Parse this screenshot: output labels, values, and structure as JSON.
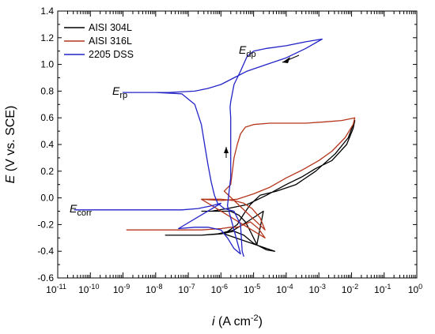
{
  "chart_data": {
    "type": "line",
    "xlabel": {
      "main": "i",
      "unit": "(A cm",
      "sup": "-2",
      "close": ")"
    },
    "ylabel": {
      "main": "E",
      "unit": "(V vs. SCE)"
    },
    "xscale": "log",
    "xlim_exp": [
      -11,
      0
    ],
    "ylim": [
      -0.6,
      1.4
    ],
    "x_tick_exponents": [
      -11,
      -10,
      -9,
      -8,
      -7,
      -6,
      -5,
      -4,
      -3,
      -2,
      -1,
      0
    ],
    "x_tick_base": "10",
    "y_ticks": [
      "-0.6",
      "-0.4",
      "-0.2",
      "0.0",
      "0.2",
      "0.4",
      "0.6",
      "0.8",
      "1.0",
      "1.2",
      "1.4"
    ],
    "legend_position": "top-left",
    "series": [
      {
        "name": "AISI 304L",
        "color": "#000000",
        "log_i_E": [
          [
            -6.6,
            -0.1
          ],
          [
            -6.0,
            -0.1
          ],
          [
            -5.7,
            -0.1
          ],
          [
            -5.45,
            -0.13
          ],
          [
            -5.25,
            -0.18
          ],
          [
            -5.1,
            -0.25
          ],
          [
            -5.0,
            -0.3
          ],
          [
            -4.9,
            -0.35
          ],
          [
            -4.7,
            -0.1
          ],
          [
            -5.2,
            -0.18
          ],
          [
            -5.6,
            -0.24
          ],
          [
            -6.1,
            -0.27
          ],
          [
            -6.6,
            -0.28
          ],
          [
            -7.2,
            -0.28
          ],
          [
            -7.7,
            -0.28
          ],
          [
            -6.6,
            -0.28
          ],
          [
            -6.0,
            -0.27
          ],
          [
            -5.6,
            -0.25
          ],
          [
            -5.3,
            -0.28
          ],
          [
            -5.0,
            -0.34
          ],
          [
            -4.6,
            -0.39
          ],
          [
            -4.35,
            -0.4
          ],
          [
            -5.9,
            -0.27
          ],
          [
            -5.5,
            -0.2
          ],
          [
            -5.3,
            -0.12
          ],
          [
            -5.1,
            -0.05
          ],
          [
            -4.8,
            0.02
          ],
          [
            -4.3,
            0.05
          ],
          [
            -3.7,
            0.1
          ],
          [
            -3.1,
            0.2
          ],
          [
            -2.5,
            0.33
          ],
          [
            -2.1,
            0.45
          ],
          [
            -1.9,
            0.58
          ],
          [
            -1.95,
            0.52
          ],
          [
            -2.15,
            0.4
          ],
          [
            -2.6,
            0.28
          ],
          [
            -3.1,
            0.22
          ],
          [
            -3.5,
            0.16
          ],
          [
            -4.0,
            0.1
          ],
          [
            -4.6,
            0.02
          ],
          [
            -5.2,
            -0.05
          ],
          [
            -5.8,
            -0.08
          ],
          [
            -6.3,
            -0.1
          ]
        ]
      },
      {
        "name": "AISI 316L",
        "color": "#b5361c",
        "log_i_E": [
          [
            -8.9,
            -0.24
          ],
          [
            -8.0,
            -0.24
          ],
          [
            -7.2,
            -0.24
          ],
          [
            -6.6,
            -0.24
          ],
          [
            -6.0,
            -0.23
          ],
          [
            -5.7,
            -0.22
          ],
          [
            -5.5,
            -0.22
          ],
          [
            -5.3,
            -0.2
          ],
          [
            -5.1,
            -0.18
          ],
          [
            -4.85,
            -0.23
          ],
          [
            -4.65,
            -0.3
          ],
          [
            -6.6,
            -0.01
          ],
          [
            -6.0,
            -0.01
          ],
          [
            -5.6,
            -0.02
          ],
          [
            -5.3,
            -0.04
          ],
          [
            -5.05,
            -0.08
          ],
          [
            -4.8,
            -0.15
          ],
          [
            -4.65,
            -0.24
          ],
          [
            -5.9,
            0.05
          ],
          [
            -5.7,
            0.1
          ],
          [
            -5.65,
            0.2
          ],
          [
            -5.6,
            0.3
          ],
          [
            -5.5,
            0.4
          ],
          [
            -5.4,
            0.48
          ],
          [
            -5.25,
            0.53
          ],
          [
            -5.0,
            0.55
          ],
          [
            -4.5,
            0.56
          ],
          [
            -4.0,
            0.56
          ],
          [
            -3.4,
            0.56
          ],
          [
            -2.8,
            0.57
          ],
          [
            -2.3,
            0.58
          ],
          [
            -1.9,
            0.6
          ],
          [
            -1.95,
            0.55
          ],
          [
            -2.2,
            0.45
          ],
          [
            -2.6,
            0.35
          ],
          [
            -3.0,
            0.28
          ],
          [
            -3.5,
            0.21
          ],
          [
            -4.0,
            0.15
          ],
          [
            -4.5,
            0.08
          ],
          [
            -5.0,
            0.03
          ],
          [
            -5.5,
            -0.01
          ],
          [
            -6.0,
            -0.02
          ],
          [
            -6.6,
            -0.01
          ]
        ]
      },
      {
        "name": "2205 DSS",
        "color": "#2323c8",
        "log_i_E": [
          [
            -10.5,
            -0.09
          ],
          [
            -9.5,
            -0.09
          ],
          [
            -8.5,
            -0.09
          ],
          [
            -7.8,
            -0.09
          ],
          [
            -7.2,
            -0.09
          ],
          [
            -6.7,
            -0.08
          ],
          [
            -6.3,
            -0.06
          ],
          [
            -6.0,
            -0.04
          ],
          [
            -7.3,
            -0.23
          ],
          [
            -6.8,
            -0.22
          ],
          [
            -6.4,
            -0.22
          ],
          [
            -6.0,
            -0.24
          ],
          [
            -5.8,
            -0.3
          ],
          [
            -5.6,
            -0.38
          ],
          [
            -5.4,
            -0.42
          ],
          [
            -5.8,
            -0.06
          ],
          [
            -5.75,
            0.05
          ],
          [
            -5.7,
            0.15
          ],
          [
            -5.7,
            0.3
          ],
          [
            -5.7,
            0.45
          ],
          [
            -5.7,
            0.6
          ],
          [
            -5.72,
            0.68
          ],
          [
            -5.7,
            0.72
          ],
          [
            -5.6,
            0.85
          ],
          [
            -5.4,
            0.95
          ],
          [
            -5.2,
            1.06
          ],
          [
            -5.0,
            1.1
          ],
          [
            -4.6,
            1.12
          ],
          [
            -4.0,
            1.14
          ],
          [
            -3.4,
            1.17
          ],
          [
            -2.9,
            1.19
          ],
          [
            -3.4,
            1.12
          ],
          [
            -4.0,
            1.05
          ],
          [
            -4.6,
            1.0
          ],
          [
            -5.2,
            0.95
          ],
          [
            -5.6,
            0.9
          ],
          [
            -6.0,
            0.85
          ],
          [
            -6.4,
            0.82
          ],
          [
            -6.8,
            0.8
          ],
          [
            -7.6,
            0.79
          ],
          [
            -8.5,
            0.79
          ],
          [
            -9.0,
            0.79
          ],
          [
            -8.0,
            0.79
          ],
          [
            -7.2,
            0.78
          ],
          [
            -6.8,
            0.7
          ],
          [
            -6.6,
            0.55
          ],
          [
            -6.5,
            0.4
          ],
          [
            -6.4,
            0.25
          ],
          [
            -6.3,
            0.12
          ],
          [
            -6.2,
            0.02
          ],
          [
            -6.1,
            -0.04
          ],
          [
            -5.9,
            -0.08
          ],
          [
            -5.6,
            -0.1
          ],
          [
            -5.4,
            -0.2
          ],
          [
            -5.35,
            -0.4
          ],
          [
            -5.3,
            -0.44
          ]
        ]
      }
    ],
    "annotations": [
      {
        "main": "E",
        "sub": "dp"
      },
      {
        "main": "E",
        "sub": "rp"
      },
      {
        "main": "E",
        "sub": "corr"
      }
    ]
  }
}
